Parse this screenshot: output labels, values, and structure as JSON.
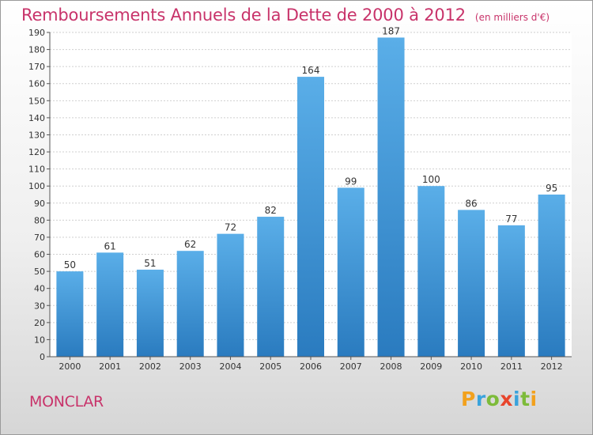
{
  "chart_data": {
    "type": "bar",
    "title": "Remboursements Annuels de la Dette de 2000 à 2012",
    "subtitle": "(en milliers d'€)",
    "categories": [
      "2000",
      "2001",
      "2002",
      "2003",
      "2004",
      "2005",
      "2006",
      "2007",
      "2008",
      "2009",
      "2010",
      "2011",
      "2012"
    ],
    "values": [
      50,
      61,
      51,
      62,
      72,
      82,
      164,
      99,
      187,
      100,
      86,
      77,
      95
    ],
    "ylim": [
      0,
      190
    ],
    "yticks": [
      0,
      10,
      20,
      30,
      40,
      50,
      60,
      70,
      80,
      90,
      100,
      110,
      120,
      130,
      140,
      150,
      160,
      170,
      180,
      190
    ],
    "grid": true,
    "bar_color_light": "#5aaee8",
    "bar_color_dark": "#2a7bbf",
    "title_color": "#c8336a"
  },
  "footer": {
    "commune": "MONCLAR",
    "logo_letters": [
      {
        "char": "P",
        "color": "#f2a11d"
      },
      {
        "char": "r",
        "color": "#3aa3dc"
      },
      {
        "char": "o",
        "color": "#7dbb3a"
      },
      {
        "char": "x",
        "color": "#e8452c"
      },
      {
        "char": "i",
        "color": "#3aa3dc"
      },
      {
        "char": "t",
        "color": "#7dbb3a"
      },
      {
        "char": "i",
        "color": "#f2a11d"
      }
    ]
  }
}
